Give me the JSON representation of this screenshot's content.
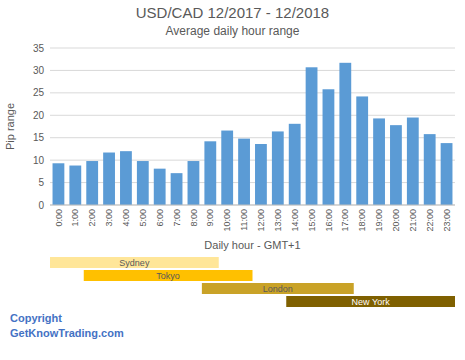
{
  "chart_data": {
    "type": "bar",
    "title": "USD/CAD 12/2017 - 12/2018",
    "subtitle": "Average daily hour range",
    "x_label": "Daily hour - GMT+1",
    "y_label": "Pip range",
    "text_color": "#595959",
    "categories": [
      "0:00",
      "1:00",
      "2:00",
      "3:00",
      "4:00",
      "5:00",
      "6:00",
      "7:00",
      "8:00",
      "9:00",
      "10:00",
      "11:00",
      "12:00",
      "13:00",
      "14:00",
      "15:00",
      "16:00",
      "17:00",
      "18:00",
      "19:00",
      "20:00",
      "21:00",
      "22:00",
      "23:00"
    ],
    "values": [
      9.3,
      8.8,
      9.8,
      11.7,
      12.0,
      9.8,
      8.1,
      7.1,
      9.8,
      14.2,
      16.6,
      14.8,
      13.6,
      16.4,
      18.1,
      30.7,
      25.8,
      31.7,
      24.2,
      19.3,
      17.8,
      19.5,
      15.8,
      13.8
    ],
    "color": "#5B9BD5",
    "ylim": [
      0,
      35
    ],
    "yticks": [
      0,
      5,
      10,
      15,
      20,
      25,
      30,
      35
    ],
    "grid": true,
    "sessions": [
      {
        "text": "Sydney",
        "start": 0,
        "end": 10,
        "color": "#FFE699",
        "text_color": "#595959"
      },
      {
        "text": "Tokyo",
        "start": 2,
        "end": 12,
        "color": "#FFC000",
        "text_color": "#595959"
      },
      {
        "text": "London",
        "start": 9,
        "end": 18,
        "color": "#C9A227",
        "text_color": "#595959"
      },
      {
        "text": "New York",
        "start": 14,
        "end": 24,
        "color": "#7F6000",
        "text_color": "#ffffff"
      }
    ],
    "annotations": [
      {
        "text": "Copyright\nGetKnowTrading.com",
        "color": "#4472C4"
      }
    ]
  }
}
